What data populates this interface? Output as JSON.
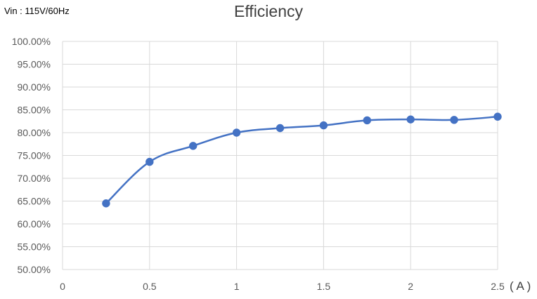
{
  "subtitle": "Vin : 115V/60Hz",
  "chart_data": {
    "type": "line",
    "title": "Efficiency",
    "xlabel": "( A )",
    "ylabel": "",
    "x_ticks": [
      "0",
      "0.5",
      "1",
      "1.5",
      "2",
      "2.5"
    ],
    "y_ticks": [
      "50.00%",
      "55.00%",
      "60.00%",
      "65.00%",
      "70.00%",
      "75.00%",
      "80.00%",
      "85.00%",
      "90.00%",
      "95.00%",
      "100.00%"
    ],
    "xlim": [
      0,
      2.5
    ],
    "ylim": [
      50,
      100
    ],
    "grid": true,
    "smooth": true,
    "series": [
      {
        "color": "#4472C4",
        "x": [
          0.25,
          0.5,
          0.75,
          1.0,
          1.25,
          1.5,
          1.75,
          2.0,
          2.25,
          2.5
        ],
        "y": [
          64.5,
          73.6,
          77.1,
          80.0,
          81.0,
          81.6,
          82.7,
          82.9,
          82.8,
          83.5
        ]
      }
    ]
  }
}
